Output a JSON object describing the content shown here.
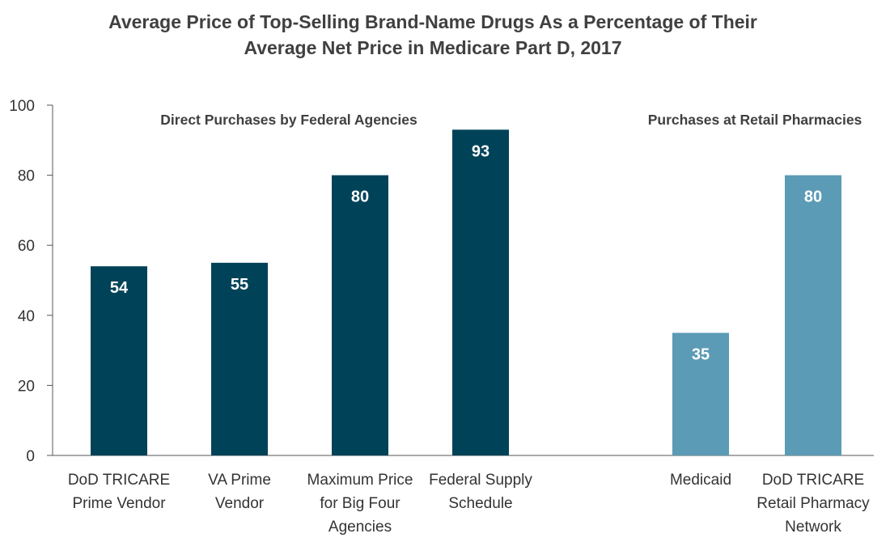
{
  "chart_data": {
    "type": "bar",
    "title": [
      "Average Price of Top-Selling Brand-Name Drugs As a Percentage of Their",
      "Average Net Price in Medicare Part D, 2017"
    ],
    "ylim": [
      0,
      100
    ],
    "yticks": [
      0,
      20,
      40,
      60,
      80,
      100
    ],
    "grid": false,
    "groups": [
      {
        "label": "Direct Purchases by Federal Agencies",
        "color": "#004358"
      },
      {
        "label": "Purchases at Retail Pharmacies",
        "color": "#5b9bb5"
      }
    ],
    "bars": [
      {
        "category": [
          "DoD TRICARE",
          "Prime Vendor"
        ],
        "value": 54,
        "group": 0
      },
      {
        "category": [
          "VA Prime",
          "Vendor"
        ],
        "value": 55,
        "group": 0
      },
      {
        "category": [
          "Maximum Price",
          "for Big Four",
          "Agencies"
        ],
        "value": 80,
        "group": 0
      },
      {
        "category": [
          "Federal Supply",
          "Schedule"
        ],
        "value": 93,
        "group": 0
      },
      {
        "category": [
          "Medicaid"
        ],
        "value": 35,
        "group": 1
      },
      {
        "category": [
          "DoD TRICARE",
          "Retail Pharmacy",
          "Network"
        ],
        "value": 80,
        "group": 1
      }
    ]
  }
}
